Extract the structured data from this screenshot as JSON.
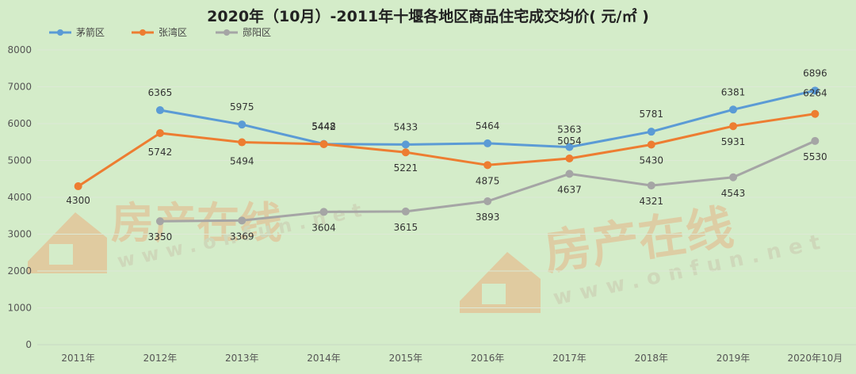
{
  "chart_data": {
    "type": "line",
    "title": "2020年（10月）-2011年十堰各地区商品住宅成交均价( 元/㎡ )",
    "categories": [
      "2011年",
      "2012年",
      "2013年",
      "2014年",
      "2015年",
      "2016年",
      "2017年",
      "2018年",
      "2019年",
      "2020年10月"
    ],
    "ylim": [
      0,
      8000
    ],
    "yticks": [
      0,
      1000,
      2000,
      3000,
      4000,
      5000,
      6000,
      7000,
      8000
    ],
    "grid": true,
    "legend": "top-left",
    "series": [
      {
        "name": "茅箭区",
        "color": "#5b9bd5",
        "values": [
          null,
          6365,
          5975,
          5448,
          5433,
          5464,
          5363,
          5781,
          6381,
          6896
        ]
      },
      {
        "name": "张湾区",
        "color": "#ed7d31",
        "values": [
          4300,
          5742,
          5494,
          5442,
          5221,
          4875,
          5054,
          5430,
          5931,
          6264
        ]
      },
      {
        "name": "郧阳区",
        "color": "#a5a5a5",
        "values": [
          null,
          3350,
          3369,
          3604,
          3615,
          3893,
          4637,
          4321,
          4543,
          5530
        ]
      }
    ]
  },
  "watermark": {
    "brand": "房产在线",
    "url": "www.onfun.net"
  }
}
